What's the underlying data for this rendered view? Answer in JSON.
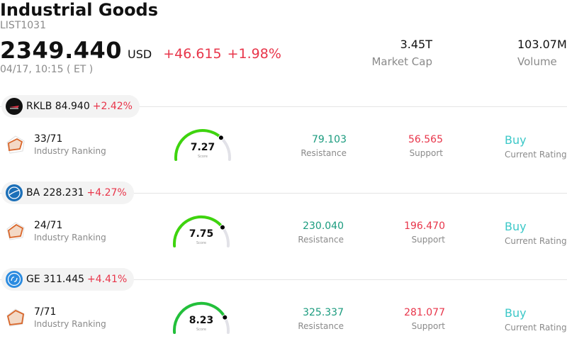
{
  "header": {
    "title": "Industrial Goods",
    "code": "LIST1031",
    "price": "2349.440",
    "currency": "USD",
    "change": "+46.615",
    "change_pct": "+1.98%",
    "timestamp": "04/17, 10:15  ( ET )"
  },
  "stats": {
    "market_cap_value": "3.45T",
    "market_cap_label": "Market Cap",
    "volume_value": "103.07M",
    "volume_label": "Volume"
  },
  "colors": {
    "up": "#e8354a",
    "resistance": "#1a9b7e",
    "support": "#e8354a",
    "rating": "#3cc8c8"
  },
  "stocks": [
    {
      "symbol_price": "RKLB 84.940",
      "change_pct": "+2.42%",
      "logo_icon": "rocket-lab-logo-icon",
      "ranking": "33/71",
      "ranking_label": "Industry Ranking",
      "score": "7.27",
      "score_fraction": 0.727,
      "score_label": "Score",
      "resistance": "79.103",
      "resistance_label": "Resistance",
      "support": "56.565",
      "support_label": "Support",
      "rating": "Buy",
      "rating_label": "Current Rating"
    },
    {
      "symbol_price": "BA 228.231",
      "change_pct": "+4.27%",
      "logo_icon": "boeing-logo-icon",
      "ranking": "24/71",
      "ranking_label": "Industry Ranking",
      "score": "7.75",
      "score_fraction": 0.775,
      "score_label": "Score",
      "resistance": "230.040",
      "resistance_label": "Resistance",
      "support": "196.470",
      "support_label": "Support",
      "rating": "Buy",
      "rating_label": "Current Rating"
    },
    {
      "symbol_price": "GE 311.445",
      "change_pct": "+4.41%",
      "logo_icon": "ge-logo-icon",
      "ranking": "7/71",
      "ranking_label": "Industry Ranking",
      "score": "8.23",
      "score_fraction": 0.823,
      "score_label": "Score",
      "resistance": "325.337",
      "resistance_label": "Resistance",
      "support": "281.077",
      "support_label": "Support",
      "rating": "Buy",
      "rating_label": "Current Rating"
    }
  ]
}
